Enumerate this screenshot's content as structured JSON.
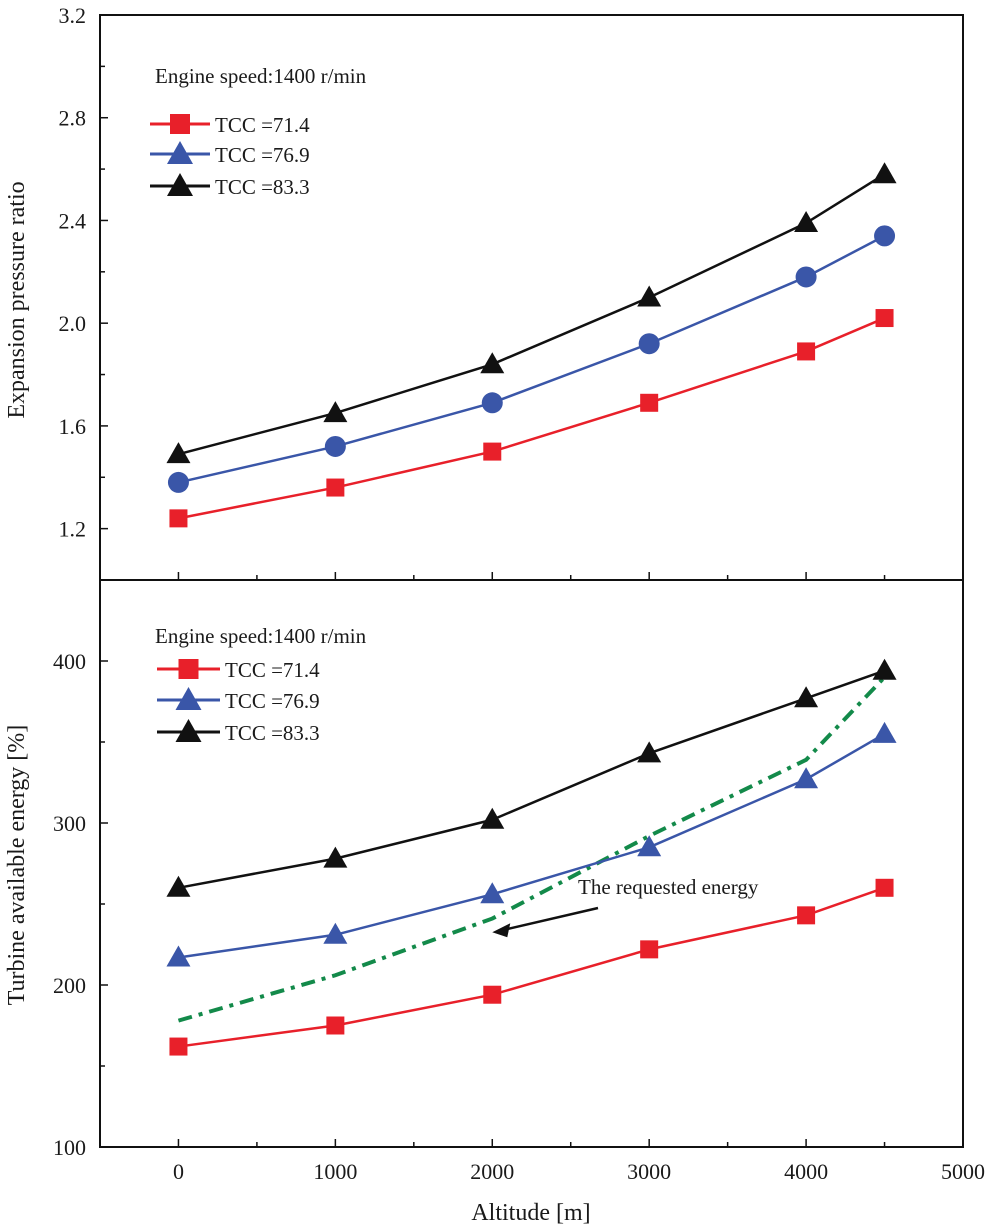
{
  "chart_data": [
    {
      "type": "line",
      "panel": "top",
      "ylabel": "Expansion pressure ratio",
      "xlabel": "",
      "ylim": [
        1.0,
        3.2
      ],
      "xlim": [
        -500,
        5000
      ],
      "yticks": [
        1.2,
        1.6,
        2.0,
        2.4,
        2.8,
        3.2
      ],
      "ytick_labels": [
        "1.2",
        "1.6",
        "2.0",
        "2.4",
        "2.8",
        "3.2"
      ],
      "legend_title": "Engine speed:1400 r/min",
      "legend_placement": "top-left",
      "x": [
        0,
        1000,
        2000,
        3000,
        4000,
        4500
      ],
      "series": [
        {
          "name": "TCC =71.4",
          "color": "#e8202a",
          "marker": "square",
          "legend_marker": "square",
          "values": [
            1.24,
            1.36,
            1.5,
            1.69,
            1.89,
            2.02
          ]
        },
        {
          "name": "TCC =76.9",
          "color": "#3a56a8",
          "marker": "circle",
          "legend_marker": "triangle",
          "values": [
            1.38,
            1.52,
            1.69,
            1.92,
            2.18,
            2.34
          ]
        },
        {
          "name": "TCC =83.3",
          "color": "#111111",
          "marker": "triangle",
          "legend_marker": "triangle",
          "values": [
            1.49,
            1.65,
            1.84,
            2.1,
            2.39,
            2.58
          ]
        }
      ]
    },
    {
      "type": "line",
      "panel": "bottom",
      "ylabel": "Turbine available energy [%]",
      "xlabel": "Altitude [m]",
      "ylim": [
        100,
        450
      ],
      "xlim": [
        -500,
        5000
      ],
      "yticks": [
        100,
        200,
        300,
        400
      ],
      "ytick_labels": [
        "100",
        "200",
        "300",
        "400"
      ],
      "xticks": [
        0,
        1000,
        2000,
        3000,
        4000,
        5000
      ],
      "xtick_labels": [
        "0",
        "1000",
        "2000",
        "3000",
        "4000",
        "5000"
      ],
      "legend_title": "Engine speed:1400 r/min",
      "legend_placement": "top-left",
      "x": [
        0,
        1000,
        2000,
        3000,
        4000,
        4500
      ],
      "series": [
        {
          "name": "TCC =71.4",
          "color": "#e8202a",
          "marker": "square",
          "values": [
            162,
            175,
            194,
            222,
            243,
            260
          ]
        },
        {
          "name": "TCC =76.9",
          "color": "#3a56a8",
          "marker": "triangle",
          "values": [
            217,
            231,
            256,
            285,
            327,
            355
          ]
        },
        {
          "name": "TCC =83.3",
          "color": "#111111",
          "marker": "triangle",
          "values": [
            260,
            278,
            302,
            343,
            377,
            394
          ]
        }
      ],
      "reference_line": {
        "color": "#138a4a",
        "style": "dash-dot",
        "x": [
          0,
          1000,
          2000,
          3000,
          4000,
          4500
        ],
        "values": [
          178,
          206,
          241,
          292,
          339,
          390
        ]
      },
      "annotation": {
        "text": "The requested energy",
        "arrow_to_x": 2000,
        "arrow_to_y": 240
      }
    }
  ]
}
